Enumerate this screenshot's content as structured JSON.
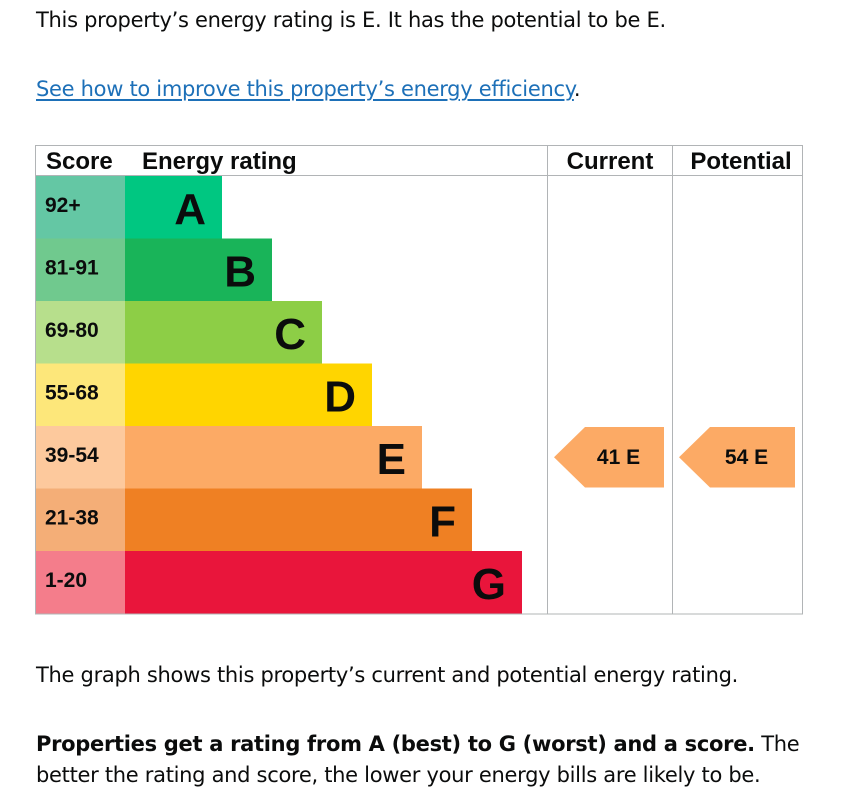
{
  "intro": "This property’s energy rating is E. It has the potential to be E.",
  "link": {
    "text": "See how to improve this property’s energy efficiency",
    "suffix": "."
  },
  "chart_data": {
    "type": "bar",
    "headers": {
      "score": "Score",
      "rating": "Energy rating",
      "current": "Current",
      "potential": "Potential"
    },
    "bands": [
      {
        "letter": "A",
        "range": "92+",
        "color": "#00c781",
        "light": "#64c7a4"
      },
      {
        "letter": "B",
        "range": "81-91",
        "color": "#19b459",
        "light": "#70c98e"
      },
      {
        "letter": "C",
        "range": "69-80",
        "color": "#8dce46",
        "light": "#b7df8c"
      },
      {
        "letter": "D",
        "range": "55-68",
        "color": "#ffd500",
        "light": "#fde77a"
      },
      {
        "letter": "E",
        "range": "39-54",
        "color": "#fcaa65",
        "light": "#fdc99d"
      },
      {
        "letter": "F",
        "range": "21-38",
        "color": "#ef8023",
        "light": "#f4ae77"
      },
      {
        "letter": "G",
        "range": "1-20",
        "color": "#e9153b",
        "light": "#f47d8b"
      }
    ],
    "current": {
      "score": 41,
      "band": "E",
      "label": "41 E"
    },
    "potential": {
      "score": 54,
      "band": "E",
      "label": "54 E"
    }
  },
  "paragraphs": {
    "graph_desc": "The graph shows this property’s current and potential energy rating.",
    "bold_text": "Properties get a rating from A (best) to G (worst) and a score.",
    "rest_text": " The better the rating and score, the lower your energy bills are likely to be."
  }
}
